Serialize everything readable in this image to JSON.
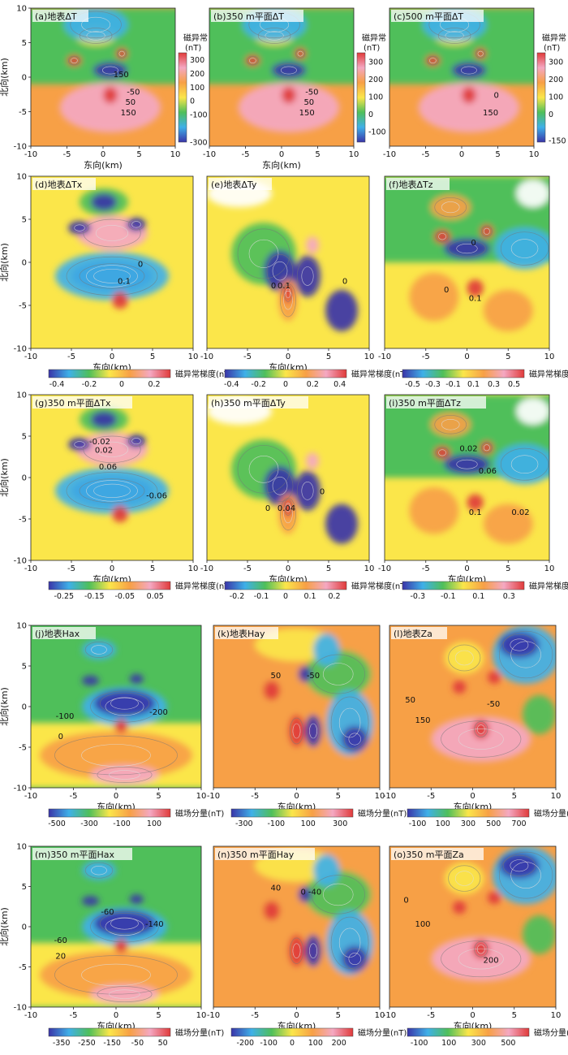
{
  "figure": {
    "axis_units": {
      "east": "东向(km)",
      "north": "北向(km)"
    },
    "colors": {
      "blue": "#3a35a8",
      "cyan": "#3fb0e8",
      "green": "#4fbf5a",
      "yellow": "#fbe64a",
      "orange": "#f7a046",
      "pink": "#f4a8c2",
      "red": "#e03a3a"
    }
  },
  "chart_data": [
    {
      "id": "a",
      "type": "heatmap",
      "title": "(a)地表ΔT",
      "xlabel": "东向(km)",
      "ylabel": "北向(km)",
      "xlim": [
        -10,
        10
      ],
      "ylim": [
        -10,
        10
      ],
      "xticks": [
        -10,
        -5,
        0,
        5,
        10
      ],
      "yticks": [
        10,
        5,
        0,
        -5,
        -10
      ],
      "colorbar": {
        "orientation": "vertical",
        "title": "磁异常(nT)",
        "ticks": [
          300,
          200,
          100,
          0,
          -100,
          -300
        ],
        "range": [
          -300,
          350
        ]
      },
      "contour_labels": [
        {
          "text": "150",
          "x": 2.5,
          "y": 0
        },
        {
          "text": "-50",
          "x": 4.2,
          "y": -2.5
        },
        {
          "text": "50",
          "x": 3.8,
          "y": -4.0
        },
        {
          "text": "150",
          "x": 3.5,
          "y": -5.5
        }
      ]
    },
    {
      "id": "b",
      "type": "heatmap",
      "title": "(b)350 m平面ΔT",
      "xlabel": "东向(km)",
      "ylabel": "",
      "xlim": [
        -10,
        10
      ],
      "ylim": [
        -10,
        10
      ],
      "xticks": [
        -10,
        -5,
        0,
        5,
        10
      ],
      "yticks": [],
      "colorbar": {
        "orientation": "vertical",
        "title": "磁异常(nT)",
        "ticks": [
          300,
          200,
          100,
          0,
          -100
        ],
        "range": [
          -160,
          350
        ]
      },
      "contour_labels": [
        {
          "text": "-50",
          "x": 4.2,
          "y": -2.5
        },
        {
          "text": "50",
          "x": 3.8,
          "y": -4.0
        },
        {
          "text": "150",
          "x": 3.5,
          "y": -5.5
        }
      ]
    },
    {
      "id": "c",
      "type": "heatmap",
      "title": "(c)500 m平面ΔT",
      "xlabel": "",
      "ylabel": "",
      "xlim": [
        -10,
        10
      ],
      "ylim": [
        -10,
        10
      ],
      "xticks": [
        -10,
        -5,
        0,
        5,
        10
      ],
      "yticks": [],
      "colorbar": {
        "orientation": "vertical",
        "title": "磁异常(nT)",
        "ticks": [
          300,
          200,
          100,
          0,
          -150
        ],
        "range": [
          -160,
          350
        ]
      },
      "contour_labels": [
        {
          "text": "0",
          "x": 4.8,
          "y": -3.0
        },
        {
          "text": "150",
          "x": 4.0,
          "y": -5.5
        }
      ]
    },
    {
      "id": "d",
      "type": "heatmap",
      "title": "(d)地表ΔTx",
      "xlabel": "东向(km)",
      "ylabel": "北向(km)",
      "xlim": [
        -10,
        10
      ],
      "ylim": [
        -10,
        10
      ],
      "xticks": [
        -10,
        -5,
        0,
        5,
        10
      ],
      "yticks": [
        10,
        5,
        0,
        -5,
        -10
      ],
      "colorbar": {
        "orientation": "horizontal",
        "title": "磁异常梯度(nT/m)",
        "ticks": [
          "-0.4",
          "-0.2",
          "0",
          "0.2"
        ],
        "range": [
          -0.45,
          0.3
        ]
      },
      "contour_labels": [
        {
          "text": "0",
          "x": 3.5,
          "y": -0.5
        },
        {
          "text": "0.1",
          "x": 1.5,
          "y": -2.5
        }
      ]
    },
    {
      "id": "e",
      "type": "heatmap",
      "title": "(e)地表ΔTy",
      "xlabel": "东向(km)",
      "ylabel": "",
      "xlim": [
        -10,
        10
      ],
      "ylim": [
        -10,
        10
      ],
      "xticks": [
        -10,
        -5,
        0,
        5,
        10
      ],
      "yticks": [],
      "colorbar": {
        "orientation": "horizontal",
        "title": "磁异常梯度(nT/m)",
        "ticks": [
          "-0.4",
          "-0.2",
          "0",
          "0.2",
          "0.4"
        ],
        "range": [
          -0.45,
          0.45
        ]
      },
      "contour_labels": [
        {
          "text": "0",
          "x": -1.8,
          "y": -3.0
        },
        {
          "text": "0",
          "x": 7.0,
          "y": -2.5
        },
        {
          "text": "0.1",
          "x": -0.5,
          "y": -3.0
        }
      ]
    },
    {
      "id": "f",
      "type": "heatmap",
      "title": "(f)地表ΔTz",
      "xlabel": "",
      "ylabel": "",
      "xlim": [
        -10,
        10
      ],
      "ylim": [
        -10,
        10
      ],
      "xticks": [
        -10,
        -5,
        0,
        5,
        10
      ],
      "yticks": [],
      "colorbar": {
        "orientation": "horizontal",
        "title": "磁异常梯度(nT/m)",
        "ticks": [
          "-0.5",
          "-0.3",
          "-0.1",
          "0.1",
          "0.3",
          "0.5"
        ],
        "range": [
          -0.6,
          0.6
        ]
      },
      "contour_labels": [
        {
          "text": "0",
          "x": 0.8,
          "y": 2.0
        },
        {
          "text": "0",
          "x": -2.5,
          "y": -3.5
        },
        {
          "text": "0.1",
          "x": 1.0,
          "y": -4.5
        }
      ]
    },
    {
      "id": "g",
      "type": "heatmap",
      "title": "(g)350 m平面ΔTx",
      "xlabel": "东向(km)",
      "ylabel": "北向(km)",
      "xlim": [
        -10,
        10
      ],
      "ylim": [
        -10,
        10
      ],
      "xticks": [
        -10,
        -5,
        0,
        5,
        10
      ],
      "yticks": [
        10,
        5,
        0,
        -5,
        -10
      ],
      "colorbar": {
        "orientation": "horizontal",
        "title": "磁异常梯度(nT/m)",
        "ticks": [
          "-0.25",
          "-0.15",
          "-0.05",
          "0.05"
        ],
        "range": [
          -0.3,
          0.1
        ]
      },
      "contour_labels": [
        {
          "text": "-0.02",
          "x": -1.5,
          "y": 4.0
        },
        {
          "text": "0.02",
          "x": -1.0,
          "y": 3.0
        },
        {
          "text": "0.06",
          "x": -0.5,
          "y": 1.0
        },
        {
          "text": "-0.06",
          "x": 5.5,
          "y": -2.5
        }
      ]
    },
    {
      "id": "h",
      "type": "heatmap",
      "title": "(h)350 m平面ΔTy",
      "xlabel": "东向(km)",
      "ylabel": "",
      "xlim": [
        -10,
        10
      ],
      "ylim": [
        -10,
        10
      ],
      "xticks": [
        -10,
        -5,
        0,
        5,
        10
      ],
      "yticks": [],
      "colorbar": {
        "orientation": "horizontal",
        "title": "磁异常梯度(nT/m)",
        "ticks": [
          "-0.2",
          "-0.1",
          "0",
          "0.1",
          "0.2"
        ],
        "range": [
          -0.25,
          0.25
        ]
      },
      "contour_labels": [
        {
          "text": "0",
          "x": 4.2,
          "y": -2.0
        },
        {
          "text": "0",
          "x": -2.5,
          "y": -4.0
        },
        {
          "text": "0.04",
          "x": -0.2,
          "y": -4.0
        }
      ]
    },
    {
      "id": "i",
      "type": "heatmap",
      "title": "(i)350 m平面ΔTz",
      "xlabel": "东向(km)",
      "ylabel": "",
      "xlim": [
        -10,
        10
      ],
      "ylim": [
        -10,
        10
      ],
      "xticks": [
        -10,
        -5,
        0,
        5,
        10
      ],
      "yticks": [],
      "colorbar": {
        "orientation": "horizontal",
        "title": "磁异常梯度(nT/m)",
        "ticks": [
          "-0.3",
          "-0.1",
          "0.1",
          "0.3"
        ],
        "range": [
          -0.4,
          0.4
        ]
      },
      "contour_labels": [
        {
          "text": "0.02",
          "x": 0.2,
          "y": 3.2
        },
        {
          "text": "0.06",
          "x": 2.5,
          "y": 0.5
        },
        {
          "text": "0.1",
          "x": 1.0,
          "y": -4.5
        },
        {
          "text": "0.02",
          "x": 6.5,
          "y": -4.5
        }
      ]
    },
    {
      "id": "j",
      "type": "heatmap",
      "title": "(j)地表Hax",
      "xlabel": "东向(km)",
      "ylabel": "北向(km)",
      "xlim": [
        -10,
        10
      ],
      "ylim": [
        -10,
        10
      ],
      "xticks": [
        -10,
        -5,
        0,
        5,
        10
      ],
      "yticks": [
        10,
        5,
        0,
        -5,
        -10
      ],
      "colorbar": {
        "orientation": "horizontal",
        "title": "磁场分量(nT)",
        "ticks": [
          "-500",
          "-300",
          "-100",
          "100"
        ],
        "range": [
          -550,
          200
        ]
      },
      "contour_labels": [
        {
          "text": "-100",
          "x": -6.0,
          "y": -1.5
        },
        {
          "text": "-200",
          "x": 5.0,
          "y": -1.0
        },
        {
          "text": "0",
          "x": -6.5,
          "y": -4.0
        }
      ]
    },
    {
      "id": "k",
      "type": "heatmap",
      "title": "(k)地表Hay",
      "xlabel": "东向(km)",
      "ylabel": "",
      "xlim": [
        -10,
        10
      ],
      "ylim": [
        -10,
        10
      ],
      "xticks": [
        -10,
        -5,
        0,
        5,
        10
      ],
      "yticks": [],
      "colorbar": {
        "orientation": "horizontal",
        "title": "磁场分量(nT)",
        "ticks": [
          "-300",
          "-100",
          "100",
          "300"
        ],
        "range": [
          -380,
          380
        ]
      },
      "contour_labels": [
        {
          "text": "50",
          "x": -2.5,
          "y": 3.5
        },
        {
          "text": "-50",
          "x": 2.0,
          "y": 3.5
        }
      ]
    },
    {
      "id": "l",
      "type": "heatmap",
      "title": "(l)地表Za",
      "xlabel": "东向(km)",
      "ylabel": "",
      "xlim": [
        -10,
        10
      ],
      "ylim": [
        -10,
        10
      ],
      "xticks": [
        -10,
        -5,
        0,
        5,
        10
      ],
      "yticks": [],
      "colorbar": {
        "orientation": "horizontal",
        "title": "磁场分量(nT)",
        "ticks": [
          "-100",
          "100",
          "300",
          "500",
          "700"
        ],
        "range": [
          -180,
          780
        ]
      },
      "contour_labels": [
        {
          "text": "50",
          "x": -7.5,
          "y": 0.5
        },
        {
          "text": "150",
          "x": -6.0,
          "y": -2.0
        },
        {
          "text": "-50",
          "x": 2.5,
          "y": 0.0
        }
      ]
    },
    {
      "id": "m",
      "type": "heatmap",
      "title": "(m)350 m平面Hax",
      "xlabel": "东向(km)",
      "ylabel": "北向(km)",
      "xlim": [
        -10,
        10
      ],
      "ylim": [
        -10,
        10
      ],
      "xticks": [
        -10,
        -5,
        0,
        5,
        10
      ],
      "yticks": [
        10,
        5,
        0,
        -5,
        -10
      ],
      "colorbar": {
        "orientation": "horizontal",
        "title": "磁场分量(nT)",
        "ticks": [
          "-350",
          "-250",
          "-150",
          "-50",
          "50"
        ],
        "range": [
          -400,
          80
        ]
      },
      "contour_labels": [
        {
          "text": "-60",
          "x": -1.0,
          "y": 1.5
        },
        {
          "text": "-140",
          "x": 4.5,
          "y": 0.0
        },
        {
          "text": "-60",
          "x": -6.5,
          "y": -2.0
        },
        {
          "text": "20",
          "x": -6.5,
          "y": -4.0
        }
      ]
    },
    {
      "id": "n",
      "type": "heatmap",
      "title": "(n)350 m平面Hay",
      "xlabel": "东向(km)",
      "ylabel": "",
      "xlim": [
        -10,
        10
      ],
      "ylim": [
        -10,
        10
      ],
      "xticks": [
        -10,
        -5,
        0,
        5,
        10
      ],
      "yticks": [],
      "colorbar": {
        "orientation": "horizontal",
        "title": "磁场分量(nT)",
        "ticks": [
          "-200",
          "-100",
          "0",
          "100",
          "200"
        ],
        "range": [
          -260,
          260
        ]
      },
      "contour_labels": [
        {
          "text": "40",
          "x": -2.5,
          "y": 4.5
        },
        {
          "text": "0",
          "x": 0.8,
          "y": 4.0
        },
        {
          "text": "-40",
          "x": 2.2,
          "y": 4.0
        }
      ]
    },
    {
      "id": "o",
      "type": "heatmap",
      "title": "(o)350 m平面Za",
      "xlabel": "东向(km)",
      "ylabel": "",
      "xlim": [
        -10,
        10
      ],
      "ylim": [
        -10,
        10
      ],
      "xticks": [
        -10,
        -5,
        0,
        5,
        10
      ],
      "yticks": [],
      "colorbar": {
        "orientation": "horizontal",
        "title": "磁场分量(nT)",
        "ticks": [
          "-100",
          "100",
          "300",
          "500"
        ],
        "range": [
          -180,
          640
        ]
      },
      "contour_labels": [
        {
          "text": "0",
          "x": -8.0,
          "y": 3.0
        },
        {
          "text": "100",
          "x": -6.0,
          "y": 0.0
        },
        {
          "text": "200",
          "x": 2.2,
          "y": -4.5
        }
      ]
    }
  ]
}
